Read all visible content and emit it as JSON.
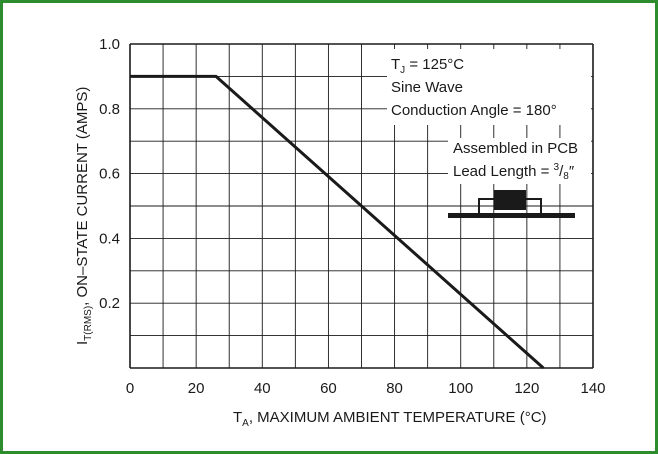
{
  "chart_data": {
    "type": "line",
    "xlabel": {
      "symbol": "T",
      "sub": "A",
      "text": ", MAXIMUM AMBIENT TEMPERATURE (",
      "unit": "°C",
      "close": ")"
    },
    "ylabel": {
      "symbol": "I",
      "sub": "T(RMS)",
      "text": ", ON–STATE CURRENT (AMPS)"
    },
    "xlim": [
      0,
      140
    ],
    "ylim": [
      0,
      1.0
    ],
    "x_ticks": [
      "0",
      "20",
      "40",
      "60",
      "80",
      "100",
      "120",
      "140"
    ],
    "y_ticks": [
      "0.2",
      "0.4",
      "0.6",
      "0.8",
      "1.0"
    ],
    "grid": true,
    "series": [
      {
        "x": [
          0,
          26,
          125
        ],
        "y": [
          0.9,
          0.9,
          0
        ]
      }
    ],
    "annotations": {
      "tj": {
        "symbol": "T",
        "sub": "J",
        "text": " = 125°C"
      },
      "wave": "Sine Wave",
      "angle": "Conduction Angle = 180°",
      "pcb": "Assembled in PCB",
      "lead": {
        "text": "Lead Length = ",
        "num": "3",
        "den": "8",
        "unit": "″"
      }
    },
    "colors": {
      "frame": "#2e8b2e",
      "line": "#1a1a1a",
      "grid": "#1a1a1a",
      "package": "#1a1a1a"
    }
  }
}
